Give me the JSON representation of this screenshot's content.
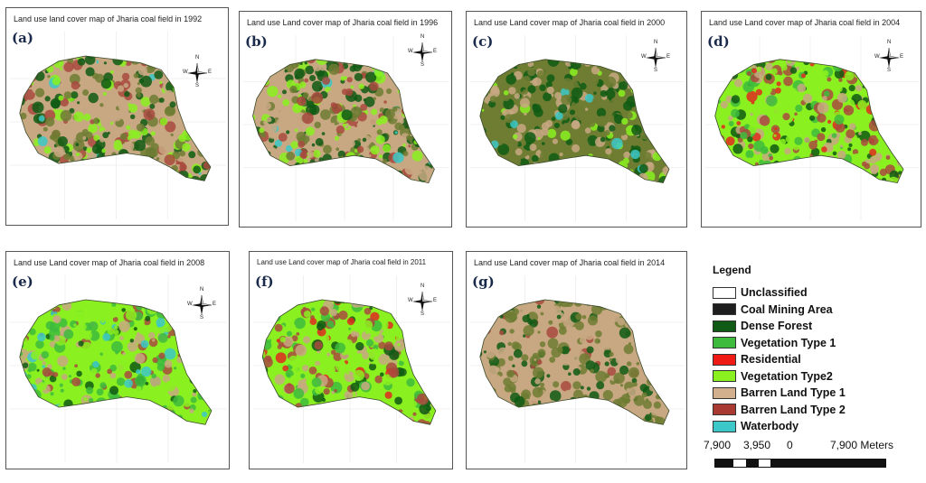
{
  "panels": [
    {
      "label": "(a)",
      "title": "Land use land cover map of Jharia coal field in 1992",
      "theme": "a"
    },
    {
      "label": "(b)",
      "title": "Land use Land cover map of Jharia coal field in 1996",
      "theme": "b"
    },
    {
      "label": "(c)",
      "title": "Land use Land cover map of Jharia coal field in 2000",
      "theme": "c"
    },
    {
      "label": "(d)",
      "title": "Land use Land cover map of Jharia coal field in 2004",
      "theme": "d"
    },
    {
      "label": "(e)",
      "title": "Land use Land cover map of Jharia coal field in 2008",
      "theme": "e"
    },
    {
      "label": "(f)",
      "title": "Land use Land cover map of Jharia coal field in 2011",
      "theme": "f"
    },
    {
      "label": "(g)",
      "title": "Land use Land cover map of Jharia coal field in 2014",
      "theme": "g"
    }
  ],
  "north_arrow": {
    "n": "N",
    "s": "S",
    "e": "E",
    "w": "W"
  },
  "legend": {
    "title": "Legend",
    "items": [
      {
        "label": "Unclassified",
        "color": "#ffffff"
      },
      {
        "label": "Coal Mining Area",
        "color": "#1e1e1e"
      },
      {
        "label": "Dense Forest",
        "color": "#0f5a14"
      },
      {
        "label": "Vegetation Type 1",
        "color": "#3dbb3d"
      },
      {
        "label": "Residential",
        "color": "#f01a14"
      },
      {
        "label": "Vegetation Type2",
        "color": "#8af020"
      },
      {
        "label": "Barren Land Type 1",
        "color": "#d2b08e"
      },
      {
        "label": "Barren Land Type 2",
        "color": "#a83a32"
      },
      {
        "label": "Waterbody",
        "color": "#3cc8c8"
      }
    ]
  },
  "scale": {
    "labels": [
      "7,900",
      "3,950",
      "0",
      "7,900 Meters"
    ]
  }
}
